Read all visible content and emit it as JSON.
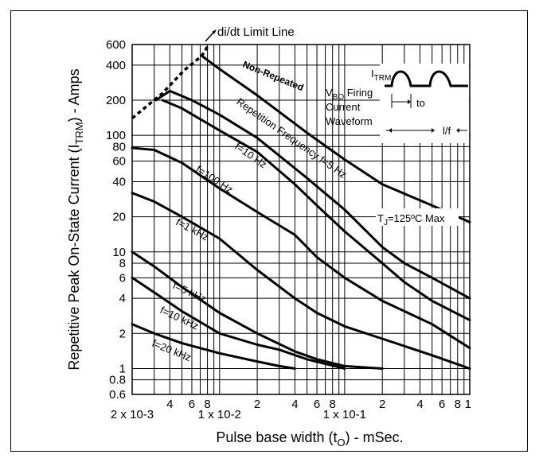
{
  "chart_data": {
    "type": "line",
    "title": "",
    "xlabel": "Pulse base width (tO) - mSec.",
    "ylabel": "Repetitive Peak On-State Current (ITRM) - Amps",
    "x_scale": "log",
    "y_scale": "log",
    "xlim": [
      0.002,
      1
    ],
    "ylim": [
      0.6,
      600
    ],
    "grid": true,
    "legend": "none",
    "y_ticks": [
      {
        "value": 600,
        "label": "600"
      },
      {
        "value": 400,
        "label": "400"
      },
      {
        "value": 200,
        "label": "200"
      },
      {
        "value": 100,
        "label": "100"
      },
      {
        "value": 80,
        "label": "80"
      },
      {
        "value": 60,
        "label": "60"
      },
      {
        "value": 40,
        "label": "40"
      },
      {
        "value": 20,
        "label": "20"
      },
      {
        "value": 10,
        "label": "10"
      },
      {
        "value": 8,
        "label": "8"
      },
      {
        "value": 6,
        "label": "6"
      },
      {
        "value": 4,
        "label": "4"
      },
      {
        "value": 2,
        "label": "2"
      },
      {
        "value": 1,
        "label": "1"
      },
      {
        "value": 0.8,
        "label": "0.8"
      },
      {
        "value": 0.6,
        "label": "0.6"
      }
    ],
    "x_ticks": [
      {
        "value": 0.004,
        "label": "4"
      },
      {
        "value": 0.006,
        "label": "6"
      },
      {
        "value": 0.008,
        "label": "8"
      },
      {
        "value": 0.02,
        "label": "2"
      },
      {
        "value": 0.04,
        "label": "4"
      },
      {
        "value": 0.06,
        "label": "6"
      },
      {
        "value": 0.08,
        "label": "8"
      },
      {
        "value": 0.2,
        "label": "2"
      },
      {
        "value": 0.4,
        "label": "4"
      },
      {
        "value": 0.6,
        "label": "6"
      },
      {
        "value": 0.8,
        "label": "8"
      },
      {
        "value": 1,
        "label": "1"
      }
    ],
    "x_decade_labels": [
      {
        "value": 0.002,
        "label": "2 x 10-3"
      },
      {
        "value": 0.01,
        "label": "1 x 10-2"
      },
      {
        "value": 0.1,
        "label": "1 x 10-1"
      }
    ],
    "series": [
      {
        "name": "di/dt Limit Line",
        "style": "dashed",
        "x": [
          0.002,
          0.0035,
          0.0052,
          0.0072,
          0.0082
        ],
        "y": [
          140,
          230,
          360,
          480,
          600
        ]
      },
      {
        "name": "Non-Repeated",
        "x": [
          0.0072,
          0.01,
          0.02,
          0.05,
          0.1,
          0.2,
          0.5,
          1
        ],
        "y": [
          480,
          370,
          220,
          105,
          62,
          38,
          25,
          18
        ]
      },
      {
        "name": "Repetition Frequency f=5 Hz",
        "x": [
          0.0031,
          0.004,
          0.006,
          0.01,
          0.02,
          0.05,
          0.1,
          0.2,
          0.3,
          0.5,
          1
        ],
        "y": [
          200,
          240,
          200,
          150,
          95,
          43,
          23,
          11,
          8,
          6,
          4
        ]
      },
      {
        "name": "f=10 Hz",
        "x": [
          0.0035,
          0.005,
          0.01,
          0.02,
          0.04,
          0.06,
          0.1,
          0.2,
          0.3,
          0.5,
          1
        ],
        "y": [
          200,
          170,
          110,
          72,
          38,
          25,
          15,
          8,
          5.5,
          3.8,
          2.6
        ]
      },
      {
        "name": "f=100 Hz",
        "x": [
          0.002,
          0.003,
          0.005,
          0.01,
          0.02,
          0.04,
          0.06,
          0.1,
          0.2,
          0.5,
          1
        ],
        "y": [
          78,
          75,
          58,
          35,
          22,
          14,
          9,
          6,
          3.8,
          2.4,
          1.5
        ]
      },
      {
        "name": "f=1 kHz",
        "x": [
          0.002,
          0.003,
          0.005,
          0.01,
          0.02,
          0.04,
          0.06,
          0.1,
          0.2,
          0.5,
          1
        ],
        "y": [
          32,
          27,
          20,
          13,
          7,
          4,
          3,
          2.3,
          1.8,
          1.3,
          1
        ]
      },
      {
        "name": "f=5 kHz",
        "x": [
          0.002,
          0.003,
          0.005,
          0.01,
          0.02,
          0.04,
          0.06,
          0.1,
          0.2
        ],
        "y": [
          10,
          7.5,
          5,
          3,
          2,
          1.4,
          1.2,
          1.05,
          1
        ]
      },
      {
        "name": "f=10 kHz",
        "x": [
          0.002,
          0.003,
          0.005,
          0.01,
          0.02,
          0.03,
          0.05,
          0.1
        ],
        "y": [
          6,
          4.5,
          3.1,
          2,
          1.6,
          1.45,
          1.2,
          1
        ]
      },
      {
        "name": "f=20 kHz",
        "x": [
          0.002,
          0.003,
          0.005,
          0.01,
          0.02,
          0.03,
          0.04
        ],
        "y": [
          2.4,
          2,
          1.65,
          1.35,
          1.15,
          1.05,
          1
        ]
      }
    ],
    "annotations": {
      "didt": "di/dt Limit Line",
      "non_repeated": "Non-Repeated",
      "rep_freq": "Repetition Frequency f=5 Hz",
      "f10hz": "f=10 Hz",
      "f100hz": "f=100 Hz",
      "f1khz": "f=1 kHz",
      "f5khz": "f=5 kHz",
      "f10khz": "f=10 kHz",
      "f20khz": "f=20 kHz",
      "tj_prefix": "T",
      "tj_sub": "J",
      "tj_rest": "=125ºC Max",
      "itrm_main": "I",
      "itrm_sub": "TRM",
      "vbo_main": "V",
      "vbo_sub": "BO",
      "vbo_rest": " Firing",
      "current": "Current",
      "waveform": "Waveform",
      "to": "to",
      "lf": "l/f"
    },
    "ylabel_parts": [
      "Repetitive Peak On-State Current (I",
      "TRM",
      ") - Amps"
    ],
    "xlabel_parts": [
      "Pulse base width (t",
      "O",
      ") - mSec."
    ]
  }
}
